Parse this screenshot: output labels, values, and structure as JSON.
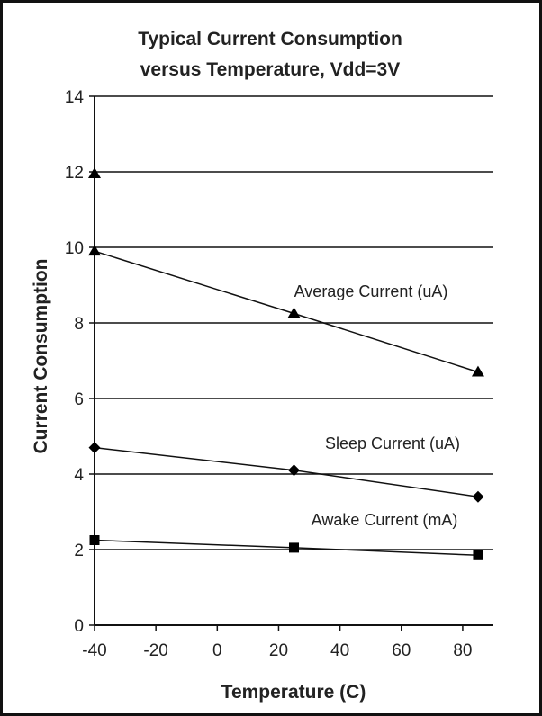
{
  "chart_data": {
    "type": "line",
    "title": [
      "Typical Current Consumption",
      "versus Temperature, Vdd=3V"
    ],
    "xlabel": "Temperature (C)",
    "ylabel": "Current Consumption",
    "xlim": [
      -40,
      90
    ],
    "ylim": [
      0,
      14
    ],
    "x_ticks": [
      -40,
      -20,
      0,
      20,
      40,
      60,
      80
    ],
    "x_tick_labels": [
      "-40",
      "-20",
      "0",
      "20",
      "40",
      "60",
      "80"
    ],
    "y_ticks": [
      0,
      2,
      4,
      6,
      8,
      10,
      12,
      14
    ],
    "y_tick_labels": [
      "0",
      "2",
      "4",
      "6",
      "8",
      "10",
      "12",
      "14"
    ],
    "grid": "horizontal",
    "series": [
      {
        "name": "Average Current (uA)",
        "marker": "triangle",
        "x": [
          -40,
          25,
          85
        ],
        "y": [
          9.9,
          8.25,
          6.7
        ]
      },
      {
        "name": "Sleep Current (uA)",
        "marker": "diamond",
        "x": [
          -40,
          25,
          85
        ],
        "y": [
          4.7,
          4.1,
          3.4
        ]
      },
      {
        "name": "Awake Current (mA)",
        "marker": "square",
        "x": [
          -40,
          25,
          85
        ],
        "y": [
          2.25,
          2.05,
          1.85
        ]
      }
    ],
    "extra_points": [
      {
        "series": "Average Current (uA)",
        "x": -40,
        "y": 11.95,
        "marker": "triangle"
      }
    ],
    "colors": {
      "frame": "#111111",
      "grid": "#111111",
      "line": "#111111",
      "marker": "#000000",
      "text": "#222222"
    }
  }
}
